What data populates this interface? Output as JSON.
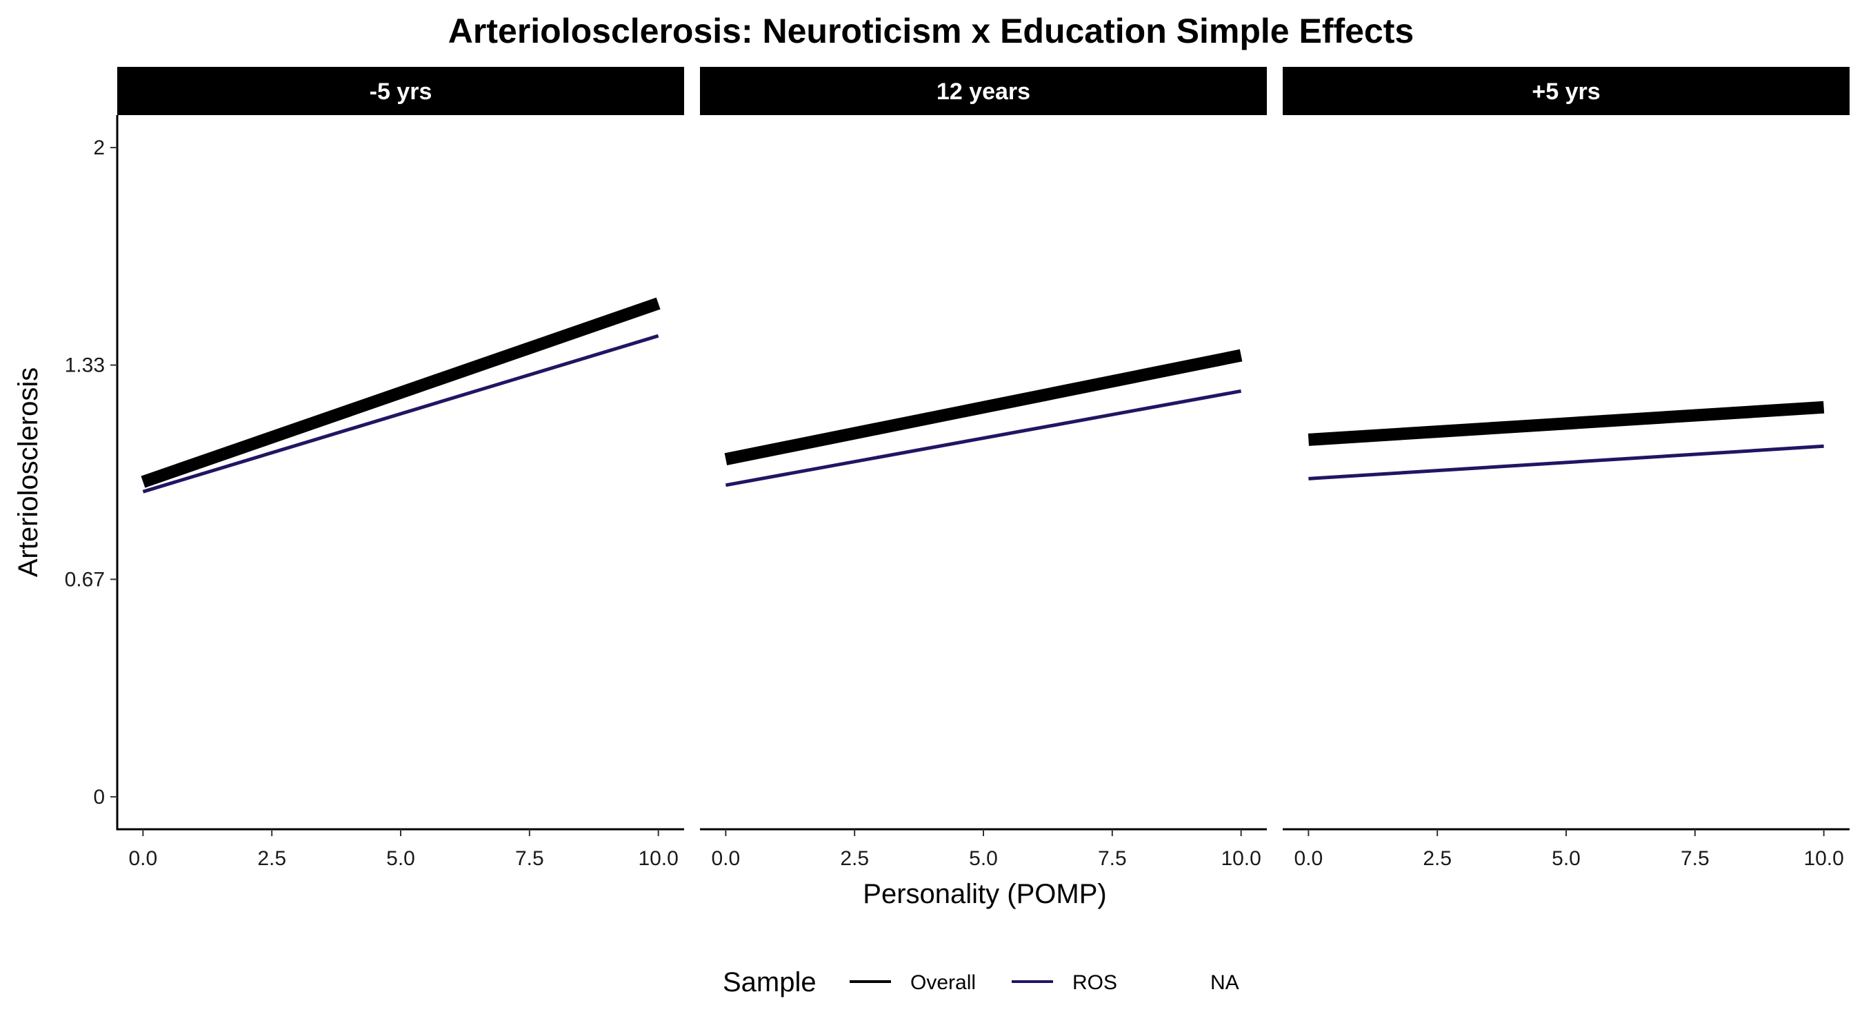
{
  "chart_data": {
    "type": "line",
    "title": "Arteriolosclerosis: Neuroticism x Education Simple Effects",
    "xlabel": "Personality (POMP)",
    "ylabel": "Arteriolosclerosis",
    "xlim": [
      -0.5,
      10.5
    ],
    "ylim": [
      -0.1,
      2.1
    ],
    "x_ticks": [
      0,
      2.5,
      5,
      7.5,
      10
    ],
    "x_tick_labels": [
      "0.0",
      "2.5",
      "5.0",
      "7.5",
      "10.0"
    ],
    "y_ticks": [
      0,
      0.67,
      1.33,
      2
    ],
    "y_tick_labels": [
      "0",
      "0.67",
      "1.33",
      "2"
    ],
    "grid": false,
    "legend": {
      "title": "Sample",
      "position": "bottom",
      "entries": [
        {
          "label": "Overall",
          "color": "#000000"
        },
        {
          "label": "ROS",
          "color": "#231463"
        },
        {
          "label": "NA",
          "color": null
        }
      ]
    },
    "panels": [
      {
        "label": "-5 yrs",
        "series": [
          {
            "name": "Overall",
            "color": "#000000",
            "x": [
              0,
              10
            ],
            "y": [
              0.97,
              1.52
            ]
          },
          {
            "name": "ROS",
            "color": "#231463",
            "x": [
              0,
              10
            ],
            "y": [
              0.94,
              1.42
            ]
          }
        ]
      },
      {
        "label": "12 years",
        "series": [
          {
            "name": "Overall",
            "color": "#000000",
            "x": [
              0,
              10
            ],
            "y": [
              1.04,
              1.36
            ]
          },
          {
            "name": "ROS",
            "color": "#231463",
            "x": [
              0,
              10
            ],
            "y": [
              0.96,
              1.25
            ]
          }
        ]
      },
      {
        "label": "+5 yrs",
        "series": [
          {
            "name": "Overall",
            "color": "#000000",
            "x": [
              0,
              10
            ],
            "y": [
              1.1,
              1.2
            ]
          },
          {
            "name": "ROS",
            "color": "#231463",
            "x": [
              0,
              10
            ],
            "y": [
              0.98,
              1.08
            ]
          }
        ]
      }
    ]
  }
}
